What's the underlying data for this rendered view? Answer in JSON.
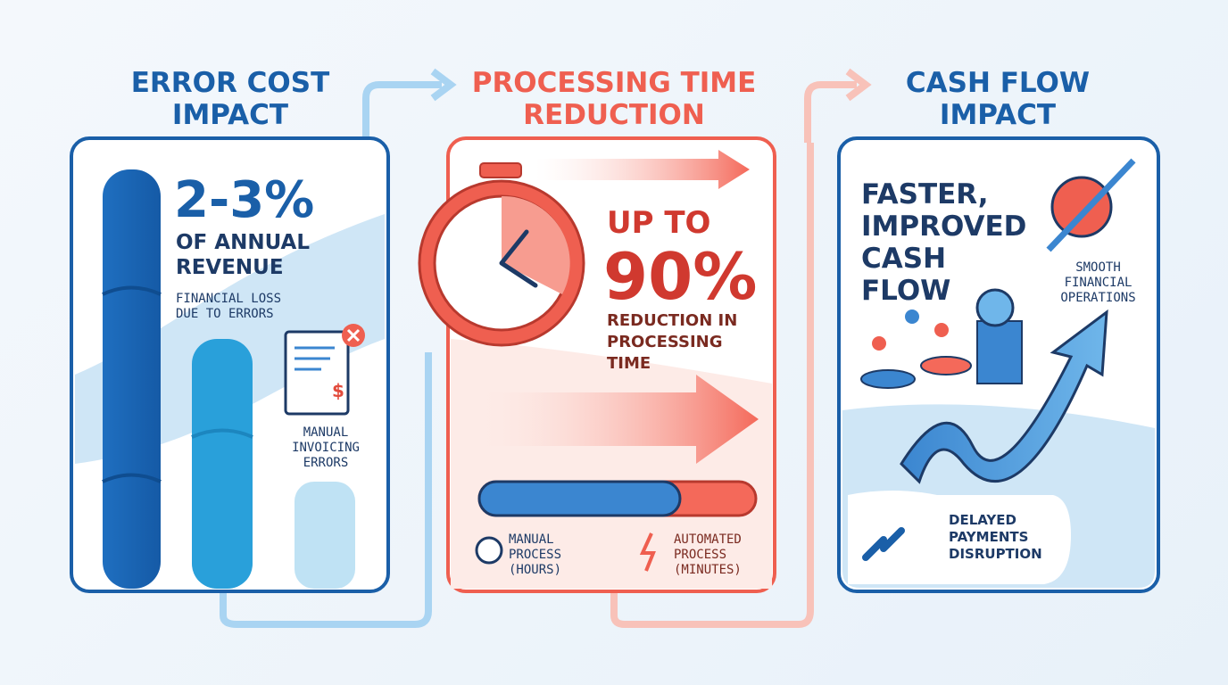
{
  "panels": [
    {
      "title": "ERROR COST IMPACT",
      "stat": "2-3%",
      "stat_label": "OF ANNUAL REVENUE",
      "note": "FINANCIAL LOSS DUE TO ERRORS",
      "icon_label": "MANUAL INVOICING ERRORS"
    },
    {
      "title": "PROCESSING TIME REDUCTION",
      "stat_prefix": "UP TO",
      "stat": "90%",
      "stat_label": "REDUCTION IN PROCESSING TIME",
      "legend": [
        "MANUAL PROCESS (HOURS)",
        "AUTOMATED PROCESS (MINUTES)"
      ]
    },
    {
      "title": "CASH FLOW IMPACT",
      "headline": "FASTER, IMPROVED CASH FLOW",
      "note": "SMOOTH FINANCIAL OPERATIONS",
      "risk_label": "DELAYED PAYMENTS DISRUPTION"
    }
  ]
}
